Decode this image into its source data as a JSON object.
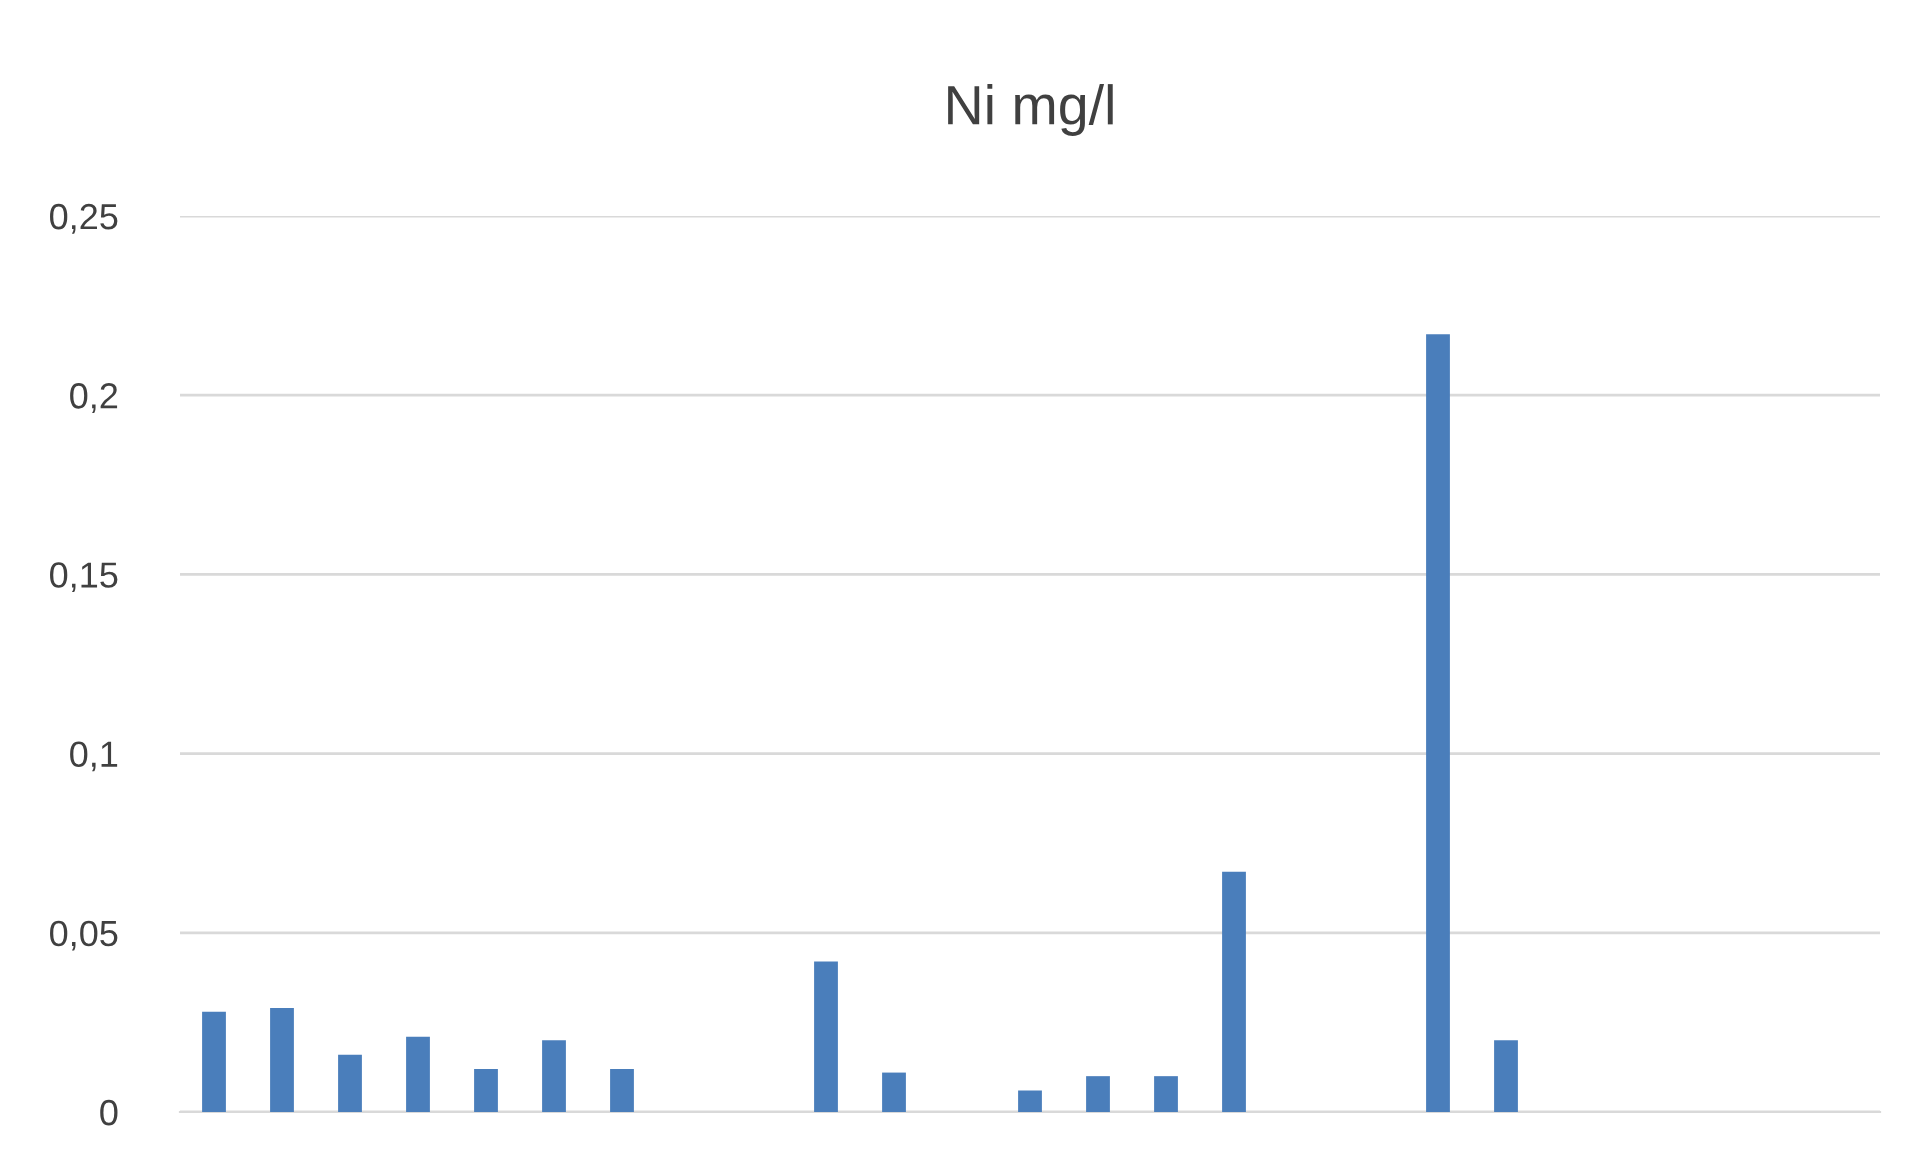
{
  "chart_data": {
    "type": "bar",
    "title": "Ni mg/l",
    "categories": [
      null,
      null,
      null,
      null,
      null,
      null,
      null,
      null,
      null,
      null,
      null,
      null,
      null,
      null,
      null,
      null,
      null,
      null,
      null,
      null,
      null,
      null,
      null,
      null,
      null
    ],
    "values": [
      0.028,
      0.029,
      0.016,
      0.021,
      0.012,
      0.02,
      0.012,
      null,
      null,
      0.042,
      0.011,
      null,
      0.006,
      0.01,
      0.01,
      0.067,
      null,
      null,
      0.217,
      0.02,
      null,
      null,
      null,
      null,
      null
    ],
    "color": "#4a7ebb",
    "ylim": [
      0,
      0.25
    ],
    "yticks": [
      {
        "value": 0,
        "label": "0"
      },
      {
        "value": 0.05,
        "label": "0,05"
      },
      {
        "value": 0.1,
        "label": "0,1"
      },
      {
        "value": 0.15,
        "label": "0,15"
      },
      {
        "value": 0.2,
        "label": "0,2"
      },
      {
        "value": 0.25,
        "label": "0,25"
      }
    ],
    "grid": "y",
    "tick_labels": "y"
  }
}
